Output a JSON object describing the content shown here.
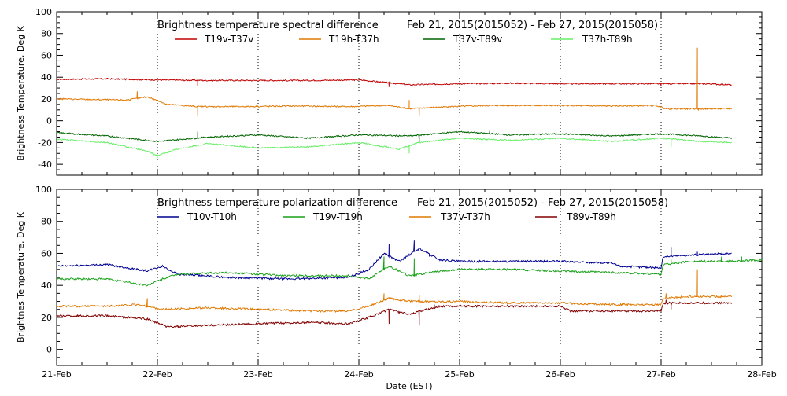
{
  "chart_data": [
    {
      "type": "line",
      "title_left": "Brightness temperature spectral difference",
      "title_right": "Feb 21, 2015(2015052) - Feb 27, 2015(2015058)",
      "ylabel": "Brightness Temperature, Deg K",
      "xlabel": "",
      "ylim": [
        -50,
        100
      ],
      "yticks": [
        -40,
        -20,
        0,
        20,
        40,
        60,
        80,
        100
      ],
      "x_range": [
        0,
        7
      ],
      "x_unit": "days since Feb 21 00:00 EST",
      "x_tick_labels": [
        "21-Feb",
        "22-Feb",
        "23-Feb",
        "24-Feb",
        "25-Feb",
        "26-Feb",
        "27-Feb",
        "28-Feb"
      ],
      "grid": "vertical dotted at day boundaries",
      "legend": "top",
      "series": [
        {
          "name": "T19v-T37v",
          "color": "#c00000",
          "points": [
            [
              0,
              38
            ],
            [
              0.5,
              38.5
            ],
            [
              1,
              37.5
            ],
            [
              1.5,
              37
            ],
            [
              2,
              37
            ],
            [
              2.5,
              37
            ],
            [
              3,
              37.5
            ],
            [
              3.5,
              33
            ],
            [
              4,
              34
            ],
            [
              4.5,
              34.5
            ],
            [
              5,
              34
            ],
            [
              5.5,
              34
            ],
            [
              6,
              34
            ],
            [
              6.45,
              34
            ],
            [
              6.7,
              33
            ]
          ],
          "spikes": [
            [
              1.4,
              32
            ],
            [
              3.3,
              31
            ],
            [
              6.0,
              32
            ]
          ]
        },
        {
          "name": "T19h-T37h",
          "color": "#e07800",
          "points": [
            [
              0,
              20
            ],
            [
              0.7,
              19
            ],
            [
              0.9,
              22
            ],
            [
              1.1,
              15
            ],
            [
              1.4,
              13
            ],
            [
              1.8,
              13
            ],
            [
              2.4,
              13.5
            ],
            [
              2.9,
              13
            ],
            [
              3.3,
              14
            ],
            [
              3.5,
              11
            ],
            [
              3.9,
              13
            ],
            [
              4.3,
              14
            ],
            [
              5,
              14
            ],
            [
              5.5,
              13.5
            ],
            [
              5.95,
              14
            ],
            [
              6.05,
              11
            ],
            [
              6.3,
              11
            ],
            [
              6.7,
              11
            ]
          ],
          "spikes": [
            [
              0.8,
              27
            ],
            [
              1.4,
              5
            ],
            [
              3.5,
              19
            ],
            [
              3.6,
              5
            ],
            [
              5.95,
              17
            ],
            [
              6.36,
              67
            ],
            [
              6.37,
              10
            ]
          ]
        },
        {
          "name": "T37v-T89v",
          "color": "#006400",
          "points": [
            [
              0,
              -11
            ],
            [
              0.5,
              -14
            ],
            [
              1,
              -19
            ],
            [
              1.5,
              -15
            ],
            [
              2,
              -13
            ],
            [
              2.5,
              -16
            ],
            [
              3,
              -13
            ],
            [
              3.5,
              -14
            ],
            [
              4,
              -10
            ],
            [
              4.5,
              -13
            ],
            [
              5,
              -12
            ],
            [
              5.5,
              -14
            ],
            [
              6,
              -12
            ],
            [
              6.4,
              -14
            ],
            [
              6.7,
              -16
            ]
          ],
          "spikes": [
            [
              1.4,
              -10
            ],
            [
              3.6,
              -20
            ],
            [
              4.3,
              -9
            ]
          ]
        },
        {
          "name": "T37h-T89h",
          "color": "#66ee66",
          "points": [
            [
              0,
              -17
            ],
            [
              0.5,
              -20
            ],
            [
              0.9,
              -28
            ],
            [
              1,
              -32
            ],
            [
              1.2,
              -26
            ],
            [
              1.5,
              -21
            ],
            [
              2,
              -25
            ],
            [
              2.5,
              -24
            ],
            [
              3,
              -20
            ],
            [
              3.4,
              -26
            ],
            [
              3.6,
              -20
            ],
            [
              4,
              -16
            ],
            [
              4.5,
              -18
            ],
            [
              5,
              -16
            ],
            [
              5.5,
              -19
            ],
            [
              6,
              -16
            ],
            [
              6.4,
              -19
            ],
            [
              6.7,
              -20
            ]
          ],
          "spikes": [
            [
              1.0,
              -34
            ],
            [
              3.5,
              -30
            ],
            [
              6.1,
              -24
            ]
          ]
        }
      ]
    },
    {
      "type": "line",
      "title_left": "Brightness temperature polarization difference",
      "title_right": "Feb 21, 2015(2015052) - Feb 27, 2015(2015058)",
      "ylabel": "Brightnes Temperature, Deg K",
      "xlabel": "Date (EST)",
      "ylim": [
        -10,
        100
      ],
      "yticks": [
        0,
        20,
        40,
        60,
        80,
        100
      ],
      "x_range": [
        0,
        7
      ],
      "x_unit": "days since Feb 21 00:00 EST",
      "x_tick_labels": [
        "21-Feb",
        "22-Feb",
        "23-Feb",
        "24-Feb",
        "25-Feb",
        "26-Feb",
        "27-Feb",
        "28-Feb"
      ],
      "grid": "vertical dotted at day boundaries",
      "legend": "top",
      "series": [
        {
          "name": "T10v-T10h",
          "color": "#000090",
          "points": [
            [
              0,
              52
            ],
            [
              0.5,
              53
            ],
            [
              0.9,
              49
            ],
            [
              1.05,
              52
            ],
            [
              1.2,
              47
            ],
            [
              1.7,
              45
            ],
            [
              2.3,
              44
            ],
            [
              2.9,
              45
            ],
            [
              3.1,
              50
            ],
            [
              3.25,
              60
            ],
            [
              3.4,
              55
            ],
            [
              3.6,
              63
            ],
            [
              3.8,
              56
            ],
            [
              4,
              55
            ],
            [
              4.5,
              55
            ],
            [
              5,
              55
            ],
            [
              5.5,
              54
            ],
            [
              5.6,
              52
            ],
            [
              6,
              51
            ],
            [
              6.02,
              58
            ],
            [
              6.3,
              59
            ],
            [
              6.7,
              60
            ]
          ],
          "spikes": [
            [
              3.3,
              66
            ],
            [
              3.55,
              68
            ],
            [
              3.7,
              58
            ],
            [
              6.1,
              64
            ],
            [
              6.36,
              61
            ]
          ]
        },
        {
          "name": "T19v-T19h",
          "color": "#18a018",
          "points": [
            [
              0,
              44
            ],
            [
              0.5,
              44
            ],
            [
              0.9,
              40
            ],
            [
              1.05,
              44
            ],
            [
              1.2,
              47
            ],
            [
              1.7,
              48
            ],
            [
              2.3,
              46
            ],
            [
              2.9,
              46
            ],
            [
              3.1,
              44
            ],
            [
              3.3,
              52
            ],
            [
              3.5,
              46
            ],
            [
              3.7,
              48
            ],
            [
              4,
              50
            ],
            [
              4.5,
              50
            ],
            [
              5,
              49
            ],
            [
              5.5,
              48
            ],
            [
              6,
              47
            ],
            [
              6.02,
              53
            ],
            [
              6.3,
              55
            ],
            [
              6.7,
              55
            ],
            [
              7,
              56
            ]
          ],
          "spikes": [
            [
              3.25,
              58
            ],
            [
              3.55,
              57
            ],
            [
              6.1,
              56
            ],
            [
              6.6,
              58
            ],
            [
              6.8,
              58
            ]
          ]
        },
        {
          "name": "T37v-T37h",
          "color": "#e07800",
          "points": [
            [
              0,
              27
            ],
            [
              0.5,
              27
            ],
            [
              0.8,
              28
            ],
            [
              1.05,
              25
            ],
            [
              1.5,
              26
            ],
            [
              2,
              25
            ],
            [
              2.5,
              24
            ],
            [
              2.9,
              24
            ],
            [
              3.1,
              27
            ],
            [
              3.3,
              32
            ],
            [
              3.5,
              30
            ],
            [
              3.8,
              30
            ],
            [
              4,
              30
            ],
            [
              4.5,
              29
            ],
            [
              5,
              29
            ],
            [
              5.5,
              28
            ],
            [
              6,
              28
            ],
            [
              6.02,
              32
            ],
            [
              6.3,
              33
            ],
            [
              6.7,
              33
            ]
          ],
          "spikes": [
            [
              0.9,
              32
            ],
            [
              3.25,
              35
            ],
            [
              3.6,
              34
            ],
            [
              6.05,
              35
            ],
            [
              6.36,
              50
            ],
            [
              6.37,
              33
            ]
          ]
        },
        {
          "name": "T89v-T89h",
          "color": "#800000",
          "points": [
            [
              0,
              21
            ],
            [
              0.5,
              21
            ],
            [
              0.9,
              19
            ],
            [
              1.1,
              14
            ],
            [
              1.5,
              15
            ],
            [
              2,
              16
            ],
            [
              2.5,
              17
            ],
            [
              2.9,
              16
            ],
            [
              3.1,
              20
            ],
            [
              3.3,
              25
            ],
            [
              3.5,
              22
            ],
            [
              3.8,
              27
            ],
            [
              4,
              27
            ],
            [
              4.5,
              27
            ],
            [
              5,
              27
            ],
            [
              5.1,
              24
            ],
            [
              5.5,
              24
            ],
            [
              6,
              24
            ],
            [
              6.02,
              29
            ],
            [
              6.3,
              29
            ],
            [
              6.7,
              29
            ]
          ],
          "spikes": [
            [
              3.3,
              16
            ],
            [
              3.4,
              22
            ],
            [
              3.6,
              15
            ],
            [
              3.75,
              28
            ],
            [
              6.05,
              31
            ],
            [
              6.1,
              25
            ]
          ]
        }
      ]
    }
  ]
}
